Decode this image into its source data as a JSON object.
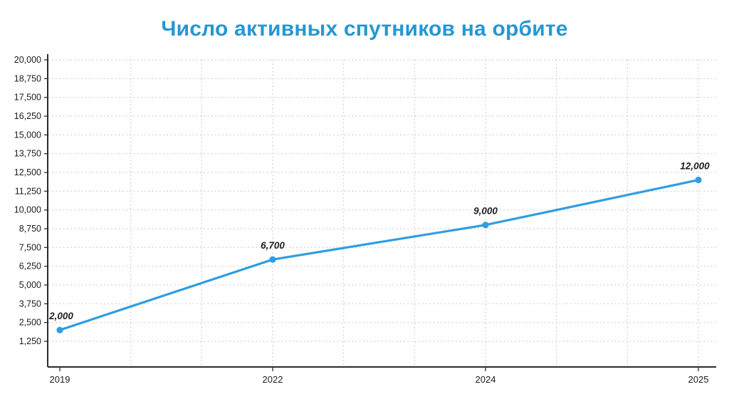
{
  "title": "Число активных спутников на орбите",
  "chart_data": {
    "type": "line",
    "title": "Число активных спутников на орбите",
    "x_labels": [
      "2019",
      "2022",
      "2024",
      "2025"
    ],
    "x_units": [
      0,
      3,
      6,
      9
    ],
    "x_minor_grid_units": [
      1,
      2,
      3,
      4,
      5,
      6,
      7,
      8,
      9
    ],
    "values": [
      2000,
      6700,
      9000,
      12000
    ],
    "point_labels": [
      "2,000",
      "6,700",
      "9,000",
      "12,000"
    ],
    "y_ticks": [
      1250,
      2500,
      3750,
      5000,
      6250,
      7500,
      8750,
      10000,
      11250,
      12500,
      13750,
      15000,
      16250,
      17500,
      18750,
      20000
    ],
    "y_tick_labels": [
      "1,250",
      "2,500",
      "3,750",
      "5,000",
      "6,250",
      "7,500",
      "8,750",
      "10,000",
      "11,250",
      "12,500",
      "13,750",
      "15,000",
      "16,250",
      "17,500",
      "18,750",
      "20,000"
    ],
    "ylim": [
      0,
      20000
    ],
    "grid": "dotted",
    "legend": "none",
    "colors": {
      "line": "#2f9de2",
      "title": "#2697d3",
      "axis": "#2b2b2b",
      "grid": "#c6c6c6",
      "text": "#1c1c1c",
      "point_label": "#222222"
    }
  }
}
